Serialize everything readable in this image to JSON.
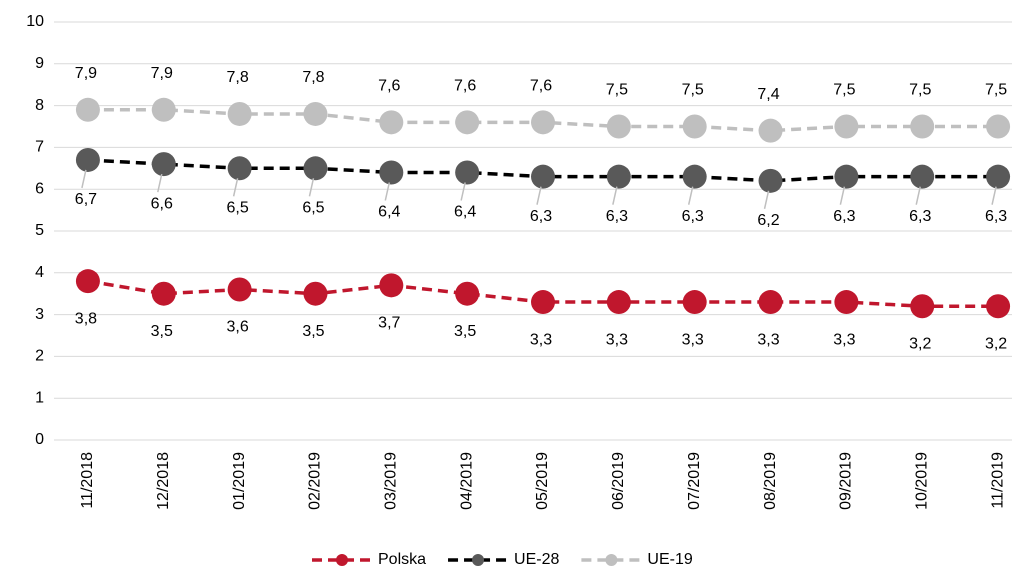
{
  "chart_data": {
    "type": "line",
    "categories": [
      "11/2018",
      "12/2018",
      "01/2019",
      "02/2019",
      "03/2019",
      "04/2019",
      "05/2019",
      "06/2019",
      "07/2019",
      "08/2019",
      "09/2019",
      "10/2019",
      "11/2019"
    ],
    "series": [
      {
        "name": "Polska",
        "color": "#c0172d",
        "marker_color": "#c0172d",
        "values": [
          3.8,
          3.5,
          3.6,
          3.5,
          3.7,
          3.5,
          3.3,
          3.3,
          3.3,
          3.3,
          3.3,
          3.2,
          3.2
        ],
        "value_labels": [
          "3,8",
          "3,5",
          "3,6",
          "3,5",
          "3,7",
          "3,5",
          "3,3",
          "3,3",
          "3,3",
          "3,3",
          "3,3",
          "3,2",
          "3,2"
        ]
      },
      {
        "name": "UE-28",
        "color": "#000000",
        "marker_color": "#595959",
        "values": [
          6.7,
          6.6,
          6.5,
          6.5,
          6.4,
          6.4,
          6.3,
          6.3,
          6.3,
          6.2,
          6.3,
          6.3,
          6.3
        ],
        "value_labels": [
          "6,7",
          "6,6",
          "6,5",
          "6,5",
          "6,4",
          "6,4",
          "6,3",
          "6,3",
          "6,3",
          "6,2",
          "6,3",
          "6,3",
          "6,3"
        ]
      },
      {
        "name": "UE-19",
        "color": "#bfbfbf",
        "marker_color": "#bfbfbf",
        "values": [
          7.9,
          7.9,
          7.8,
          7.8,
          7.6,
          7.6,
          7.6,
          7.5,
          7.5,
          7.4,
          7.5,
          7.5,
          7.5
        ],
        "value_labels": [
          "7,9",
          "7,9",
          "7,8",
          "7,8",
          "7,6",
          "7,6",
          "7,6",
          "7,5",
          "7,5",
          "7,4",
          "7,5",
          "7,5",
          "7,5"
        ]
      }
    ],
    "ylim": [
      0,
      10
    ],
    "yticks": [
      0,
      1,
      2,
      3,
      4,
      5,
      6,
      7,
      8,
      9,
      10
    ],
    "grid": true,
    "legend": "bottom"
  }
}
